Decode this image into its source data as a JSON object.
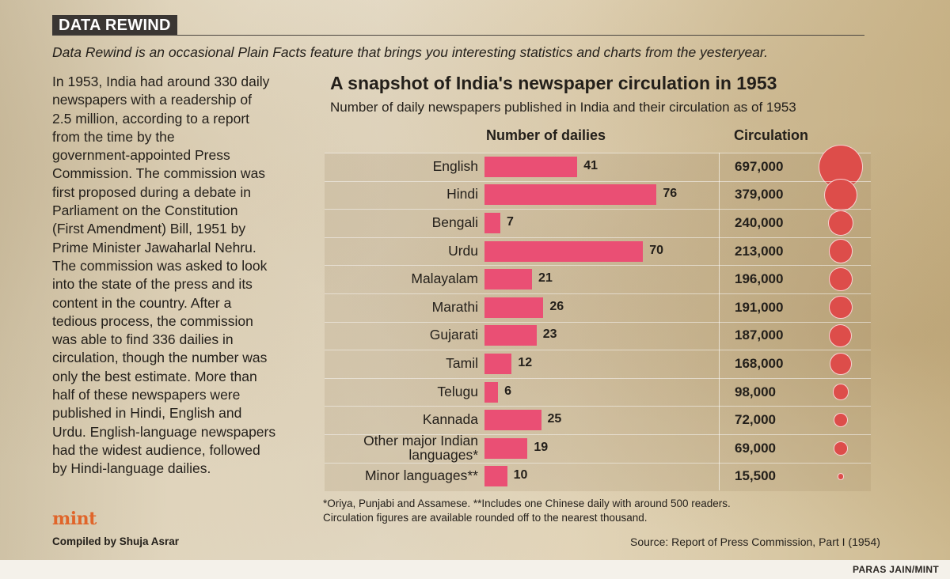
{
  "header": {
    "tag": "DATA REWIND",
    "intro": "Data Rewind is an occasional Plain Facts feature that brings you interesting statistics and charts from the yesteryear."
  },
  "body_lines": [
    "In 1953, India had around 330 daily",
    "newspapers with a readership of",
    "2.5 million, according to a report",
    "from the time by the",
    "government-appointed Press",
    "Commission. The commission was",
    "first proposed during a debate in",
    "Parliament on the Constitution",
    "(First Amendment) Bill, 1951 by",
    "Prime Minister Jawaharlal Nehru.",
    "The commission was asked to look",
    "into the state of the press and its",
    "content in the country. After a",
    "tedious process, the commission",
    "was able to find 336 dailies in",
    "circulation, though the number was",
    "only the best estimate. More than",
    "half of these newspapers were",
    "published in Hindi, English and",
    "Urdu. English-language newspapers",
    "had the widest audience, followed",
    "by Hindi-language dailies."
  ],
  "brand": {
    "logo": "mint",
    "compiled": "Compiled by Shuja Asrar"
  },
  "chart_data": {
    "type": "bar",
    "title": "A snapshot of India's newspaper circulation in 1953",
    "subtitle": "Number of daily newspapers published in India and their circulation as of 1953",
    "column_headers": {
      "dailies": "Number of dailies",
      "circulation": "Circulation"
    },
    "categories": [
      "English",
      "Hindi",
      "Bengali",
      "Urdu",
      "Malayalam",
      "Marathi",
      "Gujarati",
      "Tamil",
      "Telugu",
      "Kannada",
      "Other major Indian languages*",
      "Minor languages**"
    ],
    "category_lines": [
      [
        "English"
      ],
      [
        "Hindi"
      ],
      [
        "Bengali"
      ],
      [
        "Urdu"
      ],
      [
        "Malayalam"
      ],
      [
        "Marathi"
      ],
      [
        "Gujarati"
      ],
      [
        "Tamil"
      ],
      [
        "Telugu"
      ],
      [
        "Kannada"
      ],
      [
        "Other major Indian",
        "languages*"
      ],
      [
        "Minor languages**"
      ]
    ],
    "dailies": [
      41,
      76,
      7,
      70,
      21,
      26,
      23,
      12,
      6,
      25,
      19,
      10
    ],
    "circulation": [
      697000,
      379000,
      240000,
      213000,
      196000,
      191000,
      187000,
      168000,
      98000,
      72000,
      69000,
      15500
    ],
    "circulation_labels": [
      "697,000",
      "379,000",
      "240,000",
      "213,000",
      "196,000",
      "191,000",
      "187,000",
      "168,000",
      "98,000",
      "72,000",
      "69,000",
      "15,500"
    ],
    "bar_color": "#ea4f74",
    "bubble_color": "#dd4d4a"
  },
  "footnotes": [
    "*Oriya, Punjabi and Assamese. **Includes one Chinese daily with around 500 readers.",
    "Circulation figures are available rounded off to the nearest thousand."
  ],
  "source": "Source: Report of Press Commission, Part I (1954)",
  "credit": "PARAS JAIN/MINT"
}
